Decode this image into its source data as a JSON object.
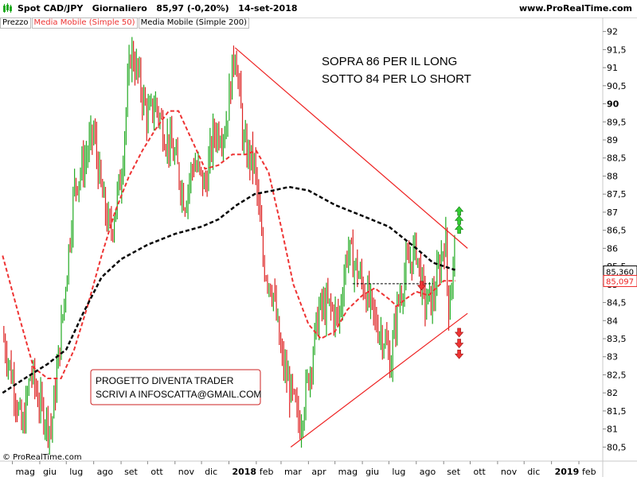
{
  "header": {
    "title": "Spot CAD/JPY   Giornaliero   85,97 (-0,20%)   14-set-2018",
    "site": "www.ProRealTime.com"
  },
  "legend": {
    "price": "Prezzo",
    "ma50": "Media Mobile (Simple 50)",
    "ma200": "Media Mobile (Simple 200)"
  },
  "annotations": {
    "note_line1": "SOPRA 86 PER IL LONG",
    "note_line2": "SOTTO 84 PER LO SHORT",
    "promo_line1": "PROGETTO DIVENTA TRADER",
    "promo_line2": "SCRIVI A INFOSCATTA@GMAIL.COM",
    "copyright": "© ProRealTime.com"
  },
  "colors": {
    "up": "#22aa22",
    "down": "#dd2222",
    "ma50": "#ee3333",
    "ma200": "#000000",
    "trendline": "#ee2222",
    "label_bg_black": "#ffffff",
    "label_red": "#ee2222"
  },
  "chart_data": {
    "type": "line",
    "title": "Spot CAD/JPY Giornaliero",
    "ylim": [
      80.2,
      92.3
    ],
    "y_ticks": [
      "80,5",
      "81",
      "81,5",
      "82",
      "82,5",
      "83",
      "83,5",
      "84",
      "84,5",
      "85",
      "85,5",
      "86",
      "86,5",
      "87",
      "87,5",
      "88",
      "88,5",
      "89",
      "89,5",
      "90",
      "90,5",
      "91",
      "91,5",
      "92"
    ],
    "x_ticks": [
      "mag",
      "giu",
      "lug",
      "ago",
      "set",
      "ott",
      "nov",
      "dic",
      "2018",
      "feb",
      "mar",
      "apr",
      "mag",
      "giu",
      "lug",
      "ago",
      "set",
      "ott",
      "nov",
      "dic",
      "2019",
      "feb"
    ],
    "last_values": {
      "ma200": "85,360",
      "ma50": "85,097"
    },
    "price_path": [
      [
        "2017-04-20",
        83.6
      ],
      [
        "2017-05-03",
        82.2
      ],
      [
        "2017-05-12",
        80.9
      ],
      [
        "2017-05-22",
        82.6
      ],
      [
        "2017-06-02",
        81.6
      ],
      [
        "2017-06-14",
        81.0
      ],
      [
        "2017-06-28",
        84.4
      ],
      [
        "2017-07-10",
        87.7
      ],
      [
        "2017-07-20",
        88.3
      ],
      [
        "2017-08-01",
        89.2
      ],
      [
        "2017-08-10",
        87.5
      ],
      [
        "2017-08-20",
        86.4
      ],
      [
        "2017-09-01",
        88.0
      ],
      [
        "2017-09-12",
        91.5
      ],
      [
        "2017-09-20",
        90.8
      ],
      [
        "2017-10-01",
        89.6
      ],
      [
        "2017-10-10",
        90.0
      ],
      [
        "2017-10-20",
        89.2
      ],
      [
        "2017-11-01",
        88.5
      ],
      [
        "2017-11-12",
        87.3
      ],
      [
        "2017-11-22",
        88.4
      ],
      [
        "2017-12-05",
        87.7
      ],
      [
        "2017-12-15",
        89.2
      ],
      [
        "2017-12-28",
        89.3
      ],
      [
        "2018-01-08",
        91.6
      ],
      [
        "2018-01-18",
        88.8
      ],
      [
        "2018-01-30",
        88.3
      ],
      [
        "2018-02-09",
        85.6
      ],
      [
        "2018-02-20",
        84.8
      ],
      [
        "2018-03-01",
        83.0
      ],
      [
        "2018-03-12",
        82.0
      ],
      [
        "2018-03-22",
        81.1
      ],
      [
        "2018-04-03",
        82.7
      ],
      [
        "2018-04-13",
        84.3
      ],
      [
        "2018-04-24",
        84.4
      ],
      [
        "2018-05-05",
        84.0
      ],
      [
        "2018-05-15",
        86.0
      ],
      [
        "2018-05-24",
        85.5
      ],
      [
        "2018-06-05",
        84.8
      ],
      [
        "2018-06-15",
        84.0
      ],
      [
        "2018-06-26",
        83.5
      ],
      [
        "2018-07-03",
        82.8
      ],
      [
        "2018-07-10",
        84.3
      ],
      [
        "2018-07-20",
        85.4
      ],
      [
        "2018-08-01",
        86.0
      ],
      [
        "2018-08-10",
        84.5
      ],
      [
        "2018-08-20",
        84.6
      ],
      [
        "2018-08-28",
        85.6
      ],
      [
        "2018-09-03",
        86.4
      ],
      [
        "2018-09-06",
        84.3
      ],
      [
        "2018-09-14",
        85.97
      ]
    ],
    "series": [
      {
        "name": "Media Mobile (Simple 50)",
        "points": [
          [
            "2017-04-20",
            85.8
          ],
          [
            "2017-05-10",
            84.0
          ],
          [
            "2017-05-25",
            82.7
          ],
          [
            "2017-06-10",
            82.4
          ],
          [
            "2017-06-25",
            82.4
          ],
          [
            "2017-07-10",
            83.2
          ],
          [
            "2017-07-25",
            84.4
          ],
          [
            "2017-08-10",
            85.8
          ],
          [
            "2017-08-25",
            87.0
          ],
          [
            "2017-09-10",
            88.0
          ],
          [
            "2017-09-25",
            88.7
          ],
          [
            "2017-10-10",
            89.3
          ],
          [
            "2017-10-25",
            89.8
          ],
          [
            "2017-11-05",
            89.8
          ],
          [
            "2017-11-20",
            89.0
          ],
          [
            "2017-12-05",
            88.2
          ],
          [
            "2017-12-20",
            88.3
          ],
          [
            "2018-01-05",
            88.6
          ],
          [
            "2018-01-20",
            88.6
          ],
          [
            "2018-02-01",
            88.7
          ],
          [
            "2018-02-15",
            88.1
          ],
          [
            "2018-03-01",
            86.6
          ],
          [
            "2018-03-15",
            85.0
          ],
          [
            "2018-04-01",
            83.9
          ],
          [
            "2018-04-15",
            83.5
          ],
          [
            "2018-05-01",
            83.7
          ],
          [
            "2018-05-15",
            84.3
          ],
          [
            "2018-06-01",
            84.7
          ],
          [
            "2018-06-15",
            84.9
          ],
          [
            "2018-07-01",
            84.6
          ],
          [
            "2018-07-10",
            84.4
          ],
          [
            "2018-07-20",
            84.6
          ],
          [
            "2018-08-01",
            84.8
          ],
          [
            "2018-08-15",
            84.7
          ],
          [
            "2018-09-01",
            85.1
          ],
          [
            "2018-09-14",
            85.1
          ]
        ]
      },
      {
        "name": "Media Mobile (Simple 200)",
        "points": [
          [
            "2017-04-20",
            82.0
          ],
          [
            "2017-05-15",
            82.4
          ],
          [
            "2017-06-10",
            82.8
          ],
          [
            "2017-07-01",
            83.2
          ],
          [
            "2017-07-20",
            84.2
          ],
          [
            "2017-08-10",
            85.2
          ],
          [
            "2017-09-01",
            85.7
          ],
          [
            "2017-10-01",
            86.1
          ],
          [
            "2017-11-01",
            86.4
          ],
          [
            "2017-12-01",
            86.6
          ],
          [
            "2017-12-20",
            86.8
          ],
          [
            "2018-01-10",
            87.2
          ],
          [
            "2018-01-30",
            87.5
          ],
          [
            "2018-02-20",
            87.6
          ],
          [
            "2018-03-10",
            87.7
          ],
          [
            "2018-04-01",
            87.6
          ],
          [
            "2018-05-01",
            87.2
          ],
          [
            "2018-06-01",
            86.9
          ],
          [
            "2018-07-01",
            86.6
          ],
          [
            "2018-08-01",
            86.0
          ],
          [
            "2018-08-20",
            85.6
          ],
          [
            "2018-09-14",
            85.4
          ]
        ]
      }
    ],
    "resistance_line": [
      [
        "2018-01-08",
        91.55
      ],
      [
        "2018-09-28",
        86.0
      ]
    ],
    "support_line": [
      [
        "2018-03-12",
        80.5
      ],
      [
        "2018-09-28",
        84.2
      ]
    ],
    "breakout_level": [
      [
        "2018-05-21",
        85.02
      ],
      [
        "2018-08-20",
        85.02
      ]
    ],
    "long_arrows_at": "2018-09-14",
    "short_arrows_at": "2018-09-14"
  }
}
